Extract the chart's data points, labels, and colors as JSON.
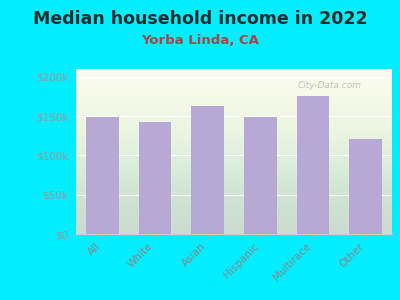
{
  "title": "Median household income in 2022",
  "subtitle": "Yorba Linda, CA",
  "categories": [
    "All",
    "White",
    "Asian",
    "Hispanic",
    "Multirace",
    "Other"
  ],
  "values": [
    149000,
    143000,
    163000,
    149000,
    176000,
    121000
  ],
  "bar_color": "#b8a9d4",
  "bg_outer": "#00eeff",
  "bg_plot_top": "#e8f0e0",
  "bg_plot_bottom": "#f8faf4",
  "title_color": "#2a2a2a",
  "subtitle_color": "#aa4444",
  "tick_color": "#888888",
  "ytick_color": "#999999",
  "ylim": [
    0,
    210000
  ],
  "yticks": [
    0,
    50000,
    100000,
    150000,
    200000
  ],
  "ytick_labels": [
    "$0",
    "$50k",
    "$100k",
    "$150k",
    "$200k"
  ],
  "watermark": "City-Data.com",
  "title_fontsize": 12.5,
  "subtitle_fontsize": 9.5,
  "tick_fontsize": 7.5,
  "ytick_fontsize": 7.5
}
